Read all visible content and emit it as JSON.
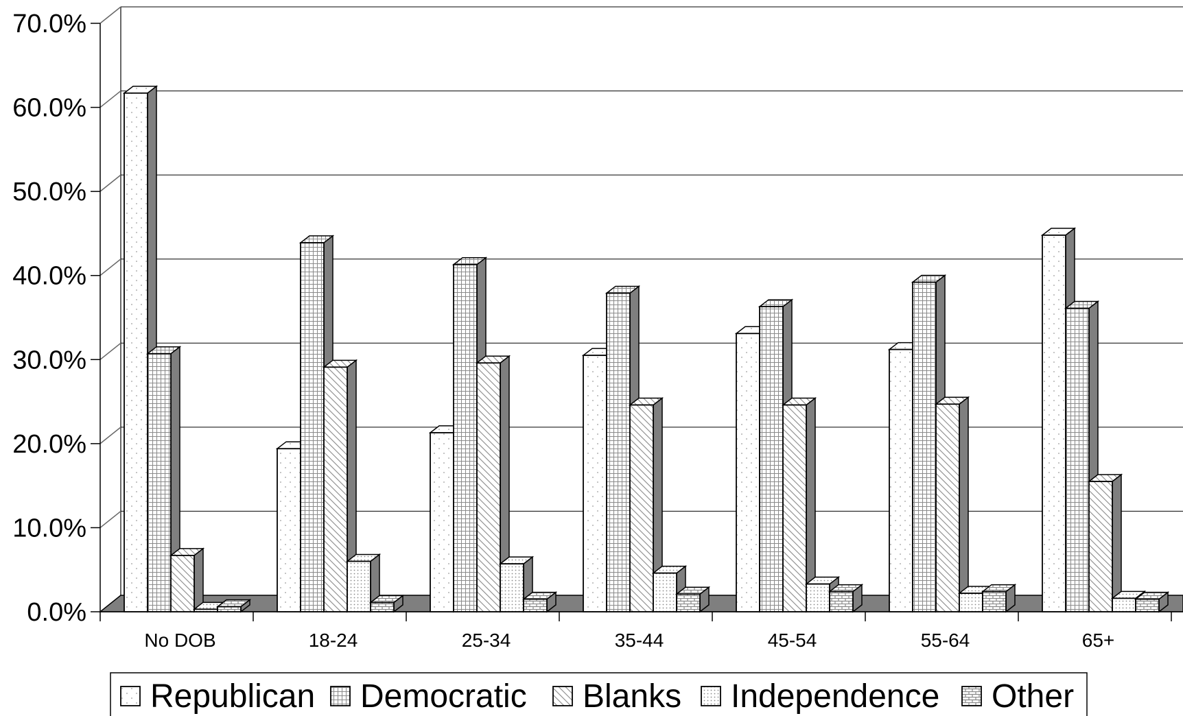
{
  "chart_data": {
    "type": "bar",
    "categories": [
      "No DOB",
      "18-24",
      "25-34",
      "35-44",
      "45-54",
      "55-64",
      "65+"
    ],
    "series": [
      {
        "name": "Republican",
        "pattern": "dots",
        "values": [
          61.7,
          19.4,
          21.3,
          30.5,
          33.1,
          31.2,
          44.8
        ]
      },
      {
        "name": "Democratic",
        "pattern": "grid",
        "values": [
          30.7,
          43.9,
          41.3,
          37.9,
          36.3,
          39.2,
          36.1
        ]
      },
      {
        "name": "Blanks",
        "pattern": "diagonal",
        "values": [
          6.7,
          29.1,
          29.6,
          24.6,
          24.6,
          24.7,
          15.5
        ]
      },
      {
        "name": "Independence",
        "pattern": "finedots",
        "values": [
          0.3,
          6.0,
          5.7,
          4.6,
          3.3,
          2.2,
          1.6
        ]
      },
      {
        "name": "Other",
        "pattern": "brick",
        "values": [
          0.6,
          1.1,
          1.5,
          2.1,
          2.4,
          2.4,
          1.5
        ]
      }
    ],
    "yticks": [
      "0.0%",
      "10.0%",
      "20.0%",
      "30.0%",
      "40.0%",
      "50.0%",
      "60.0%",
      "70.0%"
    ],
    "ylim": [
      0,
      70
    ],
    "grid": true,
    "legend_position": "bottom",
    "xlabel": "",
    "ylabel": "",
    "title": ""
  },
  "colors": {
    "bar_face": "#ffffff",
    "bar_side": "#7f7f7f",
    "floor": "#7f7f7f",
    "gridline": "#000000"
  }
}
